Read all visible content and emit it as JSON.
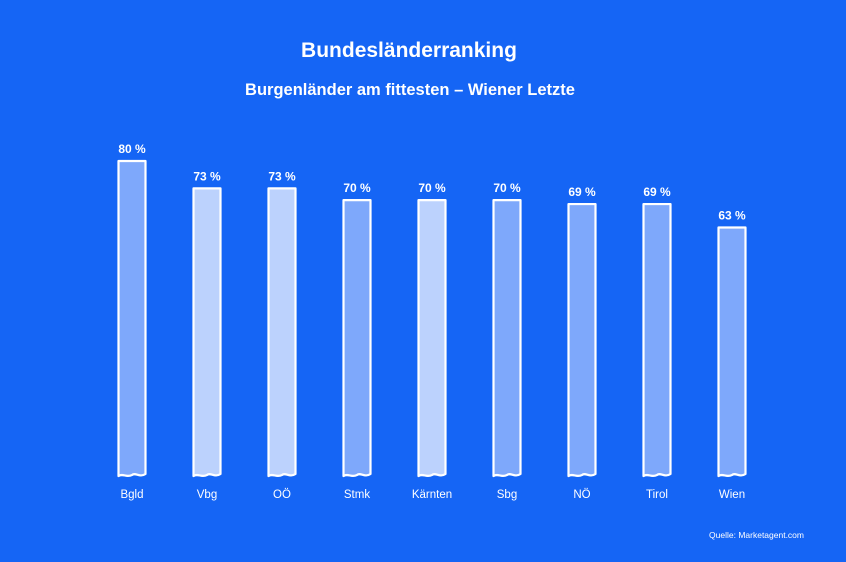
{
  "colors": {
    "background": "#1565f5",
    "bar_dark": "#7ea8fb",
    "bar_light": "#bcd2fd",
    "outline": "#ffffff",
    "text": "#ffffff"
  },
  "chart_data": {
    "type": "bar",
    "title": "Bundesländerranking",
    "subtitle": "Burgenländer am fittesten – Wiener Letzte",
    "categories": [
      "Bgld",
      "Vbg",
      "OÖ",
      "Stmk",
      "Kärnten",
      "Sbg",
      "NÖ",
      "Tirol",
      "Wien"
    ],
    "values": [
      80,
      73,
      73,
      70,
      70,
      70,
      69,
      69,
      63
    ],
    "value_labels": [
      "80 %",
      "73 %",
      "73 %",
      "70 %",
      "70 %",
      "70 %",
      "69 %",
      "69 %",
      "63 %"
    ],
    "bar_styles": [
      "dark",
      "light",
      "light",
      "dark",
      "light",
      "dark",
      "dark",
      "dark",
      "dark"
    ],
    "unit": "%",
    "ylim": [
      0,
      80
    ],
    "xlabel": "",
    "ylabel": "",
    "grid": false,
    "legend": "none",
    "source": "Quelle: Marketagent.com"
  }
}
